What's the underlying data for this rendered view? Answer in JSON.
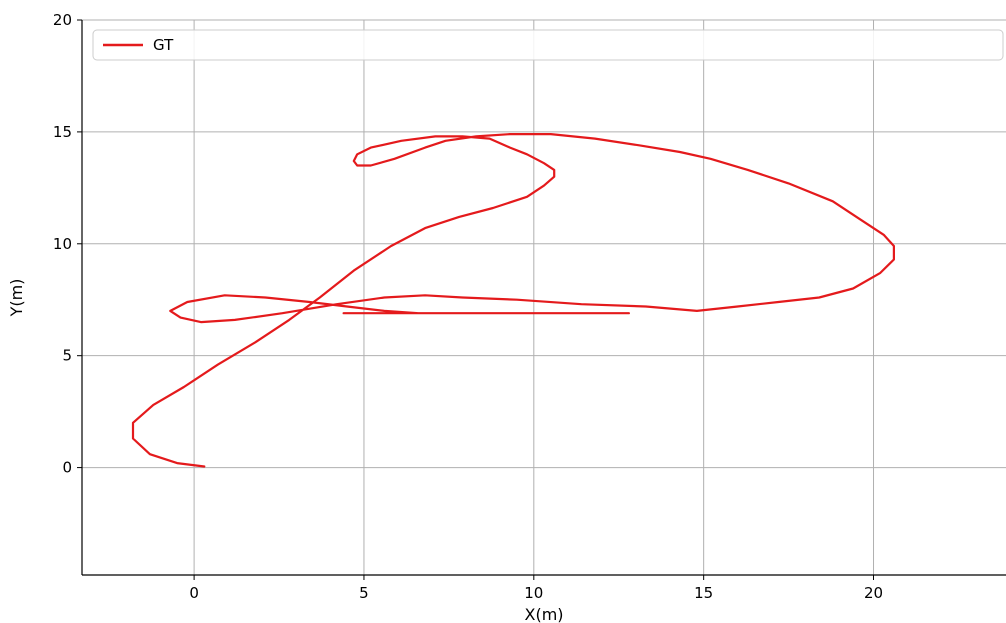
{
  "chart_data": {
    "type": "line",
    "title": "",
    "xlabel": "X(m)",
    "ylabel": "Y(m)",
    "xlim": [
      -3.3,
      23.9
    ],
    "ylim": [
      -4.8,
      20
    ],
    "xticks": [
      0,
      5,
      10,
      15,
      20
    ],
    "yticks": [
      0,
      5,
      10,
      15,
      20
    ],
    "grid": true,
    "legend_position": "top",
    "series": [
      {
        "name": "GT",
        "color": "#e41a1c",
        "x": [
          0.3,
          -0.5,
          -1.3,
          -1.8,
          -1.8,
          -1.2,
          -0.3,
          0.7,
          1.8,
          2.8,
          3.7,
          4.7,
          5.8,
          6.8,
          7.8,
          8.8,
          9.8,
          10.3,
          10.6,
          10.6,
          10.3,
          9.8,
          9.3,
          8.7,
          7.9,
          7.1,
          6.1,
          5.2,
          4.8,
          4.7,
          4.8,
          5.2,
          5.9,
          6.8,
          7.4,
          8.3,
          9.3,
          10.5,
          11.8,
          13.1,
          14.3,
          15.2,
          16.3,
          17.5,
          18.8,
          19.6,
          20.3,
          20.6,
          20.6,
          20.2,
          19.4,
          18.4,
          17.2,
          16.0,
          14.8,
          13.3,
          11.4,
          9.5,
          7.9,
          6.8,
          5.6,
          4.2,
          2.6,
          1.2,
          0.2,
          -0.4,
          -0.7,
          -0.2,
          0.9,
          2.1,
          3.4,
          4.5,
          5.6,
          6.6,
          7.6,
          8.6,
          9.6,
          10.6,
          11.6,
          12.4,
          12.8,
          12.6,
          11.9,
          10.8,
          9.6,
          8.4,
          7.2,
          6.1,
          5.2,
          4.8,
          4.6,
          4.4
        ],
        "y": [
          0.05,
          0.2,
          0.6,
          1.3,
          2.0,
          2.8,
          3.6,
          4.6,
          5.6,
          6.6,
          7.6,
          8.8,
          9.9,
          10.7,
          11.2,
          11.6,
          12.1,
          12.6,
          13.0,
          13.3,
          13.6,
          14.0,
          14.3,
          14.7,
          14.8,
          14.8,
          14.6,
          14.3,
          14.0,
          13.7,
          13.5,
          13.5,
          13.8,
          14.3,
          14.6,
          14.8,
          14.9,
          14.9,
          14.7,
          14.4,
          14.1,
          13.8,
          13.3,
          12.7,
          11.9,
          11.1,
          10.4,
          9.9,
          9.3,
          8.7,
          8.0,
          7.6,
          7.4,
          7.2,
          7.0,
          7.2,
          7.3,
          7.5,
          7.6,
          7.7,
          7.6,
          7.3,
          6.9,
          6.6,
          6.5,
          6.7,
          7.0,
          7.4,
          7.7,
          7.6,
          7.4,
          7.2,
          7.0,
          6.9,
          6.9,
          6.9,
          6.9,
          6.9,
          6.9,
          6.9,
          6.9,
          6.9,
          6.9,
          6.9,
          6.9,
          6.9,
          6.9,
          6.9,
          6.9,
          6.9,
          6.9,
          6.9
        ]
      }
    ]
  }
}
